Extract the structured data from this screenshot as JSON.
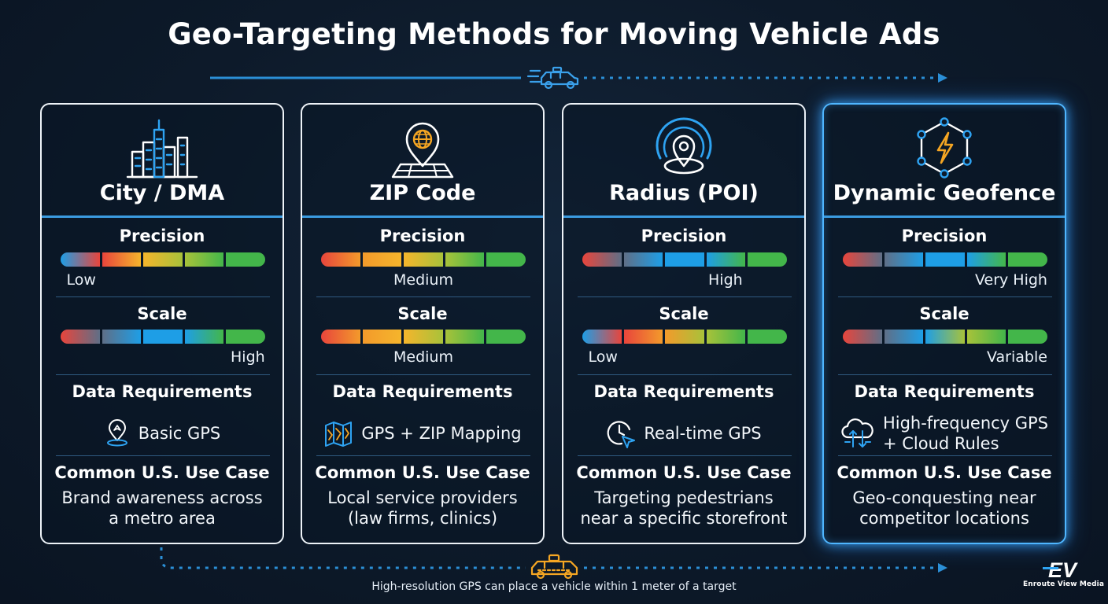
{
  "title": "Geo-Targeting Methods for Moving Vehicle Ads",
  "footnote": "High-resolution GPS can place a vehicle within 1 meter of a target",
  "brand": {
    "mark": "EV",
    "name": "Enroute View Media"
  },
  "labels": {
    "precision": "Precision",
    "scale": "Scale",
    "data_requirements": "Data Requirements",
    "use_case": "Common U.S. Use Case"
  },
  "colors": {
    "red": "#e8453c",
    "orange": "#f39a2b",
    "amber": "#f5b52c",
    "yellowgreen": "#a8c23a",
    "green": "#43b64a",
    "blue": "#1e9ee6",
    "slate": "#5f6f87",
    "accent": "#3b9be0",
    "icon_orange": "#f5a623"
  },
  "cards": [
    {
      "title": "City / DMA",
      "icon": "city-skyline-icon",
      "precision": {
        "level": "Low",
        "level_fraction": 0.1,
        "segments": [
          "blue",
          "red",
          "amber",
          "yellowgreen",
          "green"
        ]
      },
      "scale": {
        "level": "High",
        "level_fraction": 1.0,
        "segments": [
          "red",
          "slate",
          "blue",
          "blue",
          "green"
        ]
      },
      "data_icon": "location-pin-icon",
      "data_requirements": [
        "Basic GPS"
      ],
      "use_case": [
        "Brand awareness across",
        "a metro area"
      ]
    },
    {
      "title": "ZIP Code",
      "icon": "map-globe-pin-icon",
      "precision": {
        "level": "Medium",
        "level_fraction": 0.5,
        "segments": [
          "red",
          "orange",
          "amber",
          "yellowgreen",
          "green"
        ]
      },
      "scale": {
        "level": "Medium",
        "level_fraction": 0.5,
        "segments": [
          "red",
          "orange",
          "amber",
          "yellowgreen",
          "green"
        ]
      },
      "data_icon": "folded-map-icon",
      "data_requirements": [
        "GPS + ZIP Mapping"
      ],
      "use_case": [
        "Local service providers",
        "(law firms, clinics)"
      ]
    },
    {
      "title": "Radius (POI)",
      "icon": "radius-target-icon",
      "precision": {
        "level": "High",
        "level_fraction": 0.7,
        "segments": [
          "red",
          "slate",
          "blue",
          "blue",
          "green"
        ]
      },
      "scale": {
        "level": "Low",
        "level_fraction": 0.1,
        "segments": [
          "blue",
          "red",
          "orange",
          "yellowgreen",
          "green"
        ]
      },
      "data_icon": "clock-arrow-icon",
      "data_requirements": [
        "Real-time GPS"
      ],
      "use_case": [
        "Targeting pedestrians",
        "near a specific storefront"
      ]
    },
    {
      "title": "Dynamic Geofence",
      "icon": "lightning-hexagon-icon",
      "precision": {
        "level": "Very High",
        "level_fraction": 0.9,
        "segments": [
          "red",
          "slate",
          "blue",
          "blue",
          "green"
        ]
      },
      "scale": {
        "level": "Variable",
        "level_fraction": 0.9,
        "segments": [
          "red",
          "slate",
          "blue",
          "yellowgreen",
          "green"
        ]
      },
      "data_icon": "cloud-sync-icon",
      "data_requirements": [
        "High-frequency GPS",
        "+ Cloud Rules"
      ],
      "use_case": [
        "Geo-conquesting near",
        "competitor locations"
      ]
    }
  ]
}
